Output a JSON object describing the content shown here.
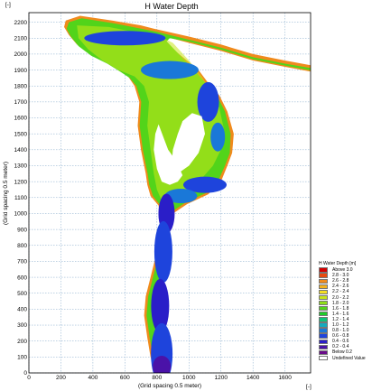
{
  "chart_data": {
    "type": "heatmap",
    "title": "H Water Depth",
    "xlabel": "(Grid spacing 0.5 meter)",
    "ylabel": "(Grid spacing 0.5 meter)",
    "x_unit_corner": "[-]",
    "y_unit_corner": "[-]",
    "xlim": [
      0,
      1760
    ],
    "ylim": [
      0,
      2260
    ],
    "x_ticks": [
      0,
      200,
      400,
      600,
      800,
      1000,
      1200,
      1400,
      1600
    ],
    "y_ticks": [
      0,
      100,
      200,
      300,
      400,
      500,
      600,
      700,
      800,
      900,
      1000,
      1100,
      1200,
      1300,
      1400,
      1500,
      1600,
      1700,
      1800,
      1900,
      2000,
      2100,
      2200
    ],
    "grid": true,
    "legend_position": "bottom-right",
    "legend": {
      "title": "H Water Depth [m]",
      "entries": [
        {
          "label": "Above 3.0",
          "color": "#d40000"
        },
        {
          "label": "2.8 - 3.0",
          "color": "#e84a10"
        },
        {
          "label": "2.6 - 2.8",
          "color": "#f08a1c"
        },
        {
          "label": "2.4 - 2.6",
          "color": "#f4b21e"
        },
        {
          "label": "2.2 - 2.4",
          "color": "#f4de22"
        },
        {
          "label": "2.0 - 2.2",
          "color": "#c8e61a"
        },
        {
          "label": "1.8 - 2.0",
          "color": "#8ede18"
        },
        {
          "label": "1.6 - 1.8",
          "color": "#52d41a"
        },
        {
          "label": "1.4 - 1.6",
          "color": "#1ecc2a"
        },
        {
          "label": "1.2 - 1.4",
          "color": "#10c27a"
        },
        {
          "label": "1.0 - 1.2",
          "color": "#14aabe"
        },
        {
          "label": "0.8 - 1.0",
          "color": "#1a78d8"
        },
        {
          "label": "0.6 - 0.8",
          "color": "#1e44dc"
        },
        {
          "label": "0.4 - 0.6",
          "color": "#2a1ec8"
        },
        {
          "label": "0.2 - 0.4",
          "color": "#4a12a8"
        },
        {
          "label": "Below 0.2",
          "color": "#6a0a8a"
        },
        {
          "label": "Undefined Value",
          "color": "#ffffff"
        }
      ]
    }
  }
}
